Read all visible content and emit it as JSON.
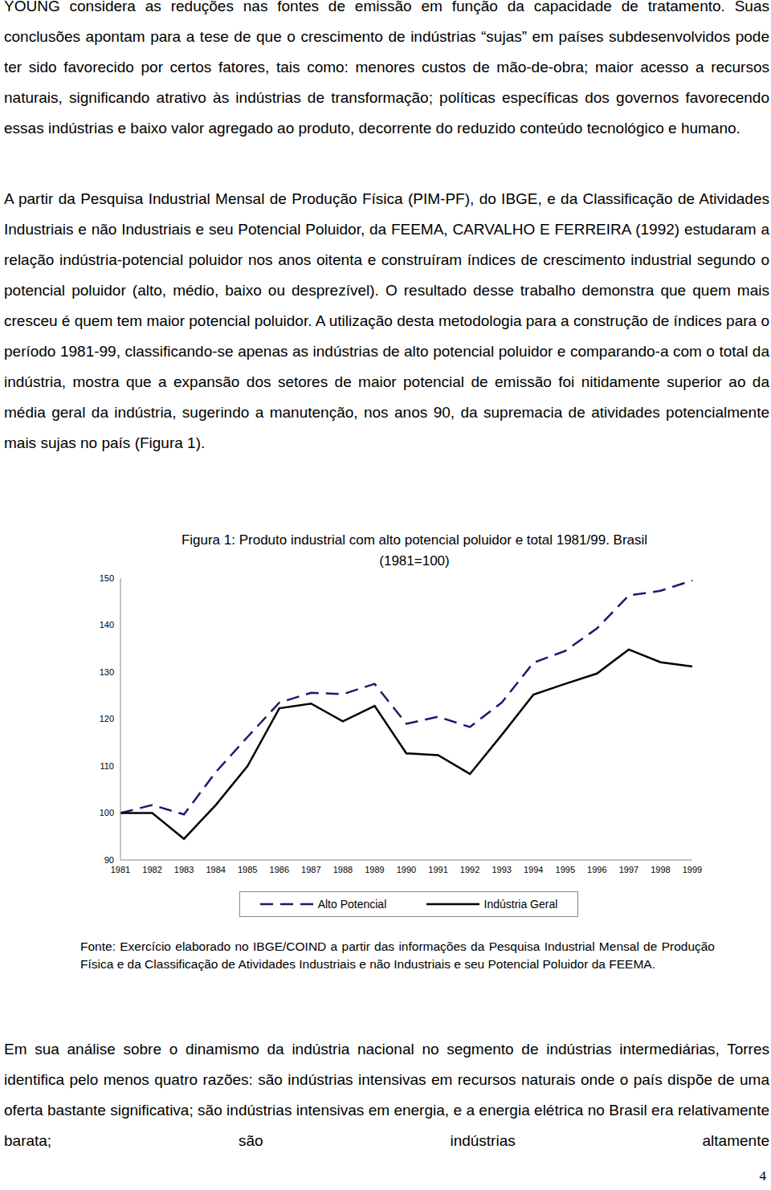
{
  "paragraphs": [
    "YOUNG considera as reduções nas fontes de emissão em função da capacidade de tratamento. Suas conclusões apontam para a tese de que o crescimento de indústrias “sujas” em países subdesenvolvidos pode ter sido favorecido por certos fatores, tais como: menores custos de mão-de-obra; maior acesso a recursos naturais, significando atrativo às indústrias de transformação; políticas específicas dos governos favorecendo essas indústrias e baixo valor agregado ao produto, decorrente do reduzido conteúdo tecnológico e humano.",
    "A partir da Pesquisa Industrial Mensal de Produção Física (PIM-PF), do IBGE, e da Classificação de Atividades Industriais e não Industriais e seu Potencial Poluidor, da FEEMA, CARVALHO E FERREIRA (1992) estudaram a relação indústria-potencial poluidor nos anos oitenta e construíram índices de crescimento industrial segundo o potencial poluidor (alto, médio, baixo ou desprezível). O resultado desse trabalho demonstra que quem mais cresceu é quem tem maior potencial poluidor. A utilização desta metodologia para a construção de índices para o período 1981-99, classificando-se apenas as indústrias de alto potencial poluidor e comparando-a com o total da indústria, mostra que a expansão dos setores de maior potencial de emissão foi nitidamente superior ao da média geral da indústria, sugerindo a manutenção, nos anos 90, da supremacia de atividades potencialmente mais sujas no país (Figura 1)."
  ],
  "chart_data": {
    "type": "line",
    "title": "Figura 1: Produto industrial com alto potencial poluidor e total 1981/99. Brasil (1981=100)",
    "categories": [
      "1981",
      "1982",
      "1983",
      "1984",
      "1985",
      "1986",
      "1987",
      "1988",
      "1989",
      "1990",
      "1991",
      "1992",
      "1993",
      "1994",
      "1995",
      "1996",
      "1997",
      "1998",
      "1999"
    ],
    "series": [
      {
        "name": "Alto Potencial",
        "color": "#1a1a6e",
        "line_style": "dashed",
        "values": [
          100,
          101.7,
          99.7,
          108.7,
          116.2,
          123.5,
          125.6,
          125.3,
          127.5,
          119,
          120.5,
          118.3,
          123.5,
          132,
          134.5,
          139.3,
          146.3,
          147.3,
          149.5
        ]
      },
      {
        "name": "Indústria Geral",
        "color": "#000000",
        "line_style": "solid",
        "values": [
          100,
          100,
          94.5,
          101.7,
          110,
          122.3,
          123.3,
          119.5,
          122.8,
          112.7,
          112.3,
          108.3,
          116.6,
          125.2,
          127.5,
          129.7,
          134.8,
          132.1,
          131.2
        ]
      }
    ],
    "ylim": [
      90,
      150
    ],
    "yticks": [
      90,
      100,
      110,
      120,
      130,
      140,
      150
    ],
    "grid": false,
    "legend": "bottom"
  },
  "source": "Fonte: Exercício elaborado no IBGE/COIND a partir das informações da Pesquisa Industrial Mensal de Produção Física e da Classificação de Atividades Industriais e não Industriais e seu Potencial Poluidor da FEEMA.",
  "paragraphs_after": [
    "Em sua análise sobre o dinamismo da indústria nacional no segmento de indústrias intermediárias, Torres identifica pelo menos quatro razões: são indústrias intensivas em recursos naturais onde o país dispõe de uma oferta bastante significativa; são indústrias intensivas em energia, e a energia elétrica no Brasil era relativamente barata; são indústrias altamente"
  ],
  "page_number": "4"
}
